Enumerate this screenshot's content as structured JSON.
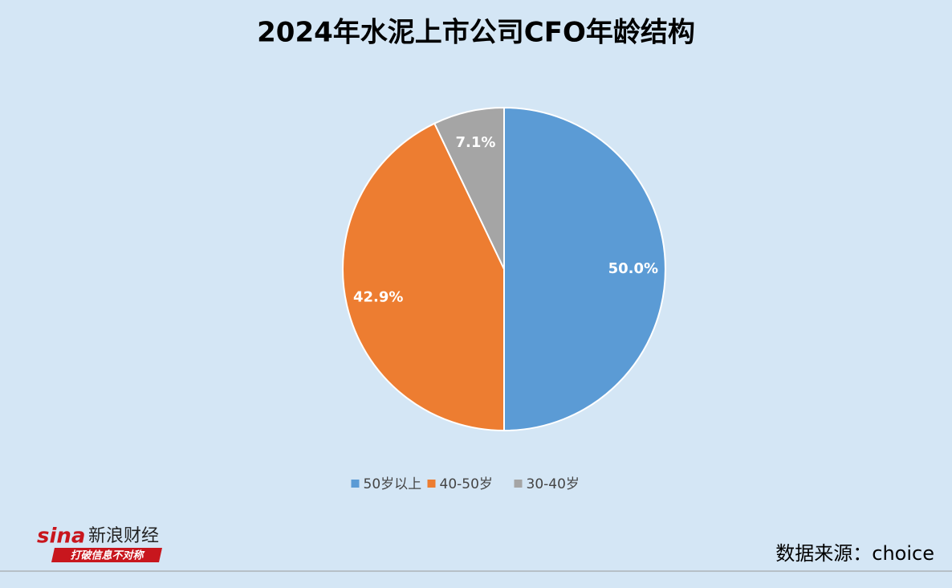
{
  "chart_data": {
    "type": "pie",
    "title": "2024年水泥上市公司CFO年龄结构",
    "categories": [
      "50岁以上",
      "40-50岁",
      "30-40岁"
    ],
    "values": [
      50.0,
      42.9,
      7.1
    ],
    "value_labels": [
      "50.0%",
      "42.9%",
      "7.1%"
    ],
    "colors": [
      "#5b9bd5",
      "#ed7d31",
      "#a5a5a5"
    ],
    "legend": "bottom"
  },
  "footer": {
    "logo": "sina",
    "brand": "新浪财经",
    "slogan": "打破信息不对称",
    "source": "数据来源：choice"
  }
}
